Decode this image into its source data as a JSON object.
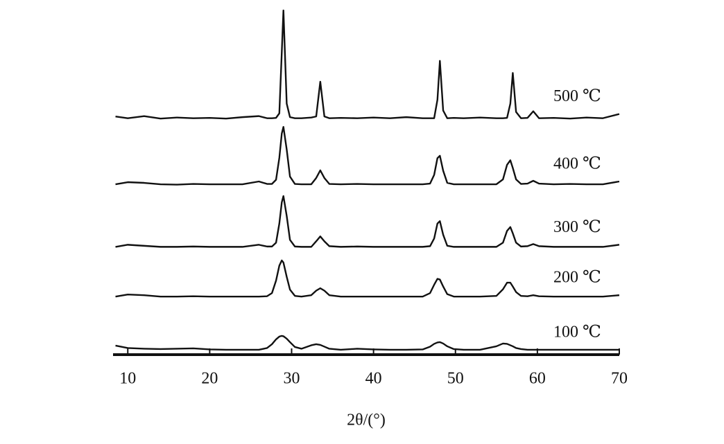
{
  "chart_data": {
    "type": "line",
    "x_label": "2θ/(°)",
    "xlim": [
      8.2,
      70
    ],
    "ylim": [
      0,
      100
    ],
    "xticks": [
      10,
      20,
      30,
      40,
      50,
      60,
      70
    ],
    "x": [
      8.5,
      10,
      12,
      14,
      16,
      18,
      20,
      22,
      24,
      26,
      27,
      27.6,
      28.1,
      28.5,
      28.8,
      29,
      29.4,
      29.8,
      30.4,
      31.2,
      32.4,
      33,
      33.5,
      34,
      34.6,
      36,
      38,
      40,
      42,
      44,
      46,
      46.9,
      47.4,
      47.8,
      48.1,
      48.5,
      49,
      49.8,
      51,
      53,
      55,
      55.8,
      56.3,
      56.7,
      57,
      57.4,
      58,
      58.8,
      59.5,
      60.2,
      62,
      64,
      66,
      68,
      70
    ],
    "series": [
      {
        "name": "500 ℃",
        "color": "#111111",
        "values": [
          68.5,
          68,
          68.6,
          67.9,
          68.2,
          68,
          68.1,
          67.9,
          68.3,
          68.6,
          68,
          68,
          68.1,
          69.4,
          87,
          99,
          72.2,
          68.3,
          68,
          68,
          68.2,
          68.5,
          78.5,
          68.5,
          68,
          68.1,
          68,
          68.2,
          68,
          68.3,
          68,
          68,
          68,
          73.3,
          84.5,
          70.2,
          68,
          68.1,
          68,
          68.2,
          68,
          68,
          68.1,
          72.2,
          81,
          69.8,
          68,
          68.1,
          70,
          68,
          68.1,
          67.9,
          68.2,
          68,
          69.2
        ]
      },
      {
        "name": "400 ℃",
        "color": "#111111",
        "values": [
          49,
          49.6,
          49.4,
          49,
          48.9,
          49.1,
          49,
          49,
          49,
          49.8,
          49.1,
          49.1,
          50.3,
          56.6,
          63.6,
          65.5,
          59,
          51.2,
          49.1,
          49,
          49,
          50.8,
          53,
          50.8,
          49.1,
          49,
          49.1,
          49,
          49,
          49,
          49,
          49.2,
          51.7,
          56.5,
          57.2,
          52.9,
          49.4,
          49,
          49,
          49,
          49,
          50.4,
          54.6,
          55.9,
          53.7,
          50.4,
          49.1,
          49.2,
          50,
          49.2,
          49,
          49.1,
          49,
          49,
          49.8
        ]
      },
      {
        "name": "300 ℃",
        "color": "#111111",
        "values": [
          31,
          31.6,
          31.3,
          31,
          31,
          31.1,
          31,
          31,
          31,
          31.6,
          31.1,
          31.1,
          32.2,
          37.7,
          43.8,
          45.6,
          39.9,
          33,
          31.1,
          31,
          31,
          32.6,
          34,
          32.6,
          31.2,
          31,
          31.1,
          31,
          31,
          31,
          31,
          31.2,
          33.4,
          37.7,
          38.4,
          34.5,
          31.3,
          31,
          31,
          31,
          31,
          32.2,
          35.6,
          36.7,
          34.9,
          32.2,
          31.1,
          31.2,
          31.8,
          31.2,
          31,
          31,
          31,
          31,
          31.6
        ]
      },
      {
        "name": "200 ℃",
        "color": "#111111",
        "values": [
          16.7,
          17.3,
          17.1,
          16.7,
          16.7,
          16.8,
          16.7,
          16.7,
          16.7,
          16.7,
          16.8,
          17.7,
          21.3,
          25.6,
          27.1,
          26.5,
          22.4,
          18.7,
          16.9,
          16.7,
          17.1,
          18.4,
          19.1,
          18.4,
          17.1,
          16.7,
          16.7,
          16.7,
          16.7,
          16.7,
          16.7,
          17.7,
          20.1,
          21.8,
          21.6,
          19.6,
          17.4,
          16.7,
          16.7,
          16.7,
          16.9,
          18.8,
          20.7,
          20.7,
          19.6,
          18,
          16.9,
          16.8,
          17.1,
          16.8,
          16.7,
          16.7,
          16.7,
          16.7,
          17.1
        ]
      },
      {
        "name": "100 ℃",
        "color": "#111111",
        "values": [
          2.6,
          1.9,
          1.7,
          1.6,
          1.7,
          1.8,
          1.5,
          1.4,
          1.4,
          1.4,
          1.9,
          3,
          4.4,
          5.2,
          5.4,
          5.3,
          4.6,
          3.6,
          2.2,
          1.7,
          2.7,
          3,
          2.8,
          2.3,
          1.7,
          1.4,
          1.7,
          1.5,
          1.4,
          1.4,
          1.5,
          2.3,
          3.1,
          3.5,
          3.6,
          3.2,
          2.4,
          1.6,
          1.4,
          1.4,
          2.4,
          3.2,
          3.1,
          2.7,
          2.4,
          1.9,
          1.6,
          1.4,
          1.4,
          1.4,
          1.4,
          1.4,
          1.4,
          1.4,
          1.4
        ]
      }
    ]
  }
}
